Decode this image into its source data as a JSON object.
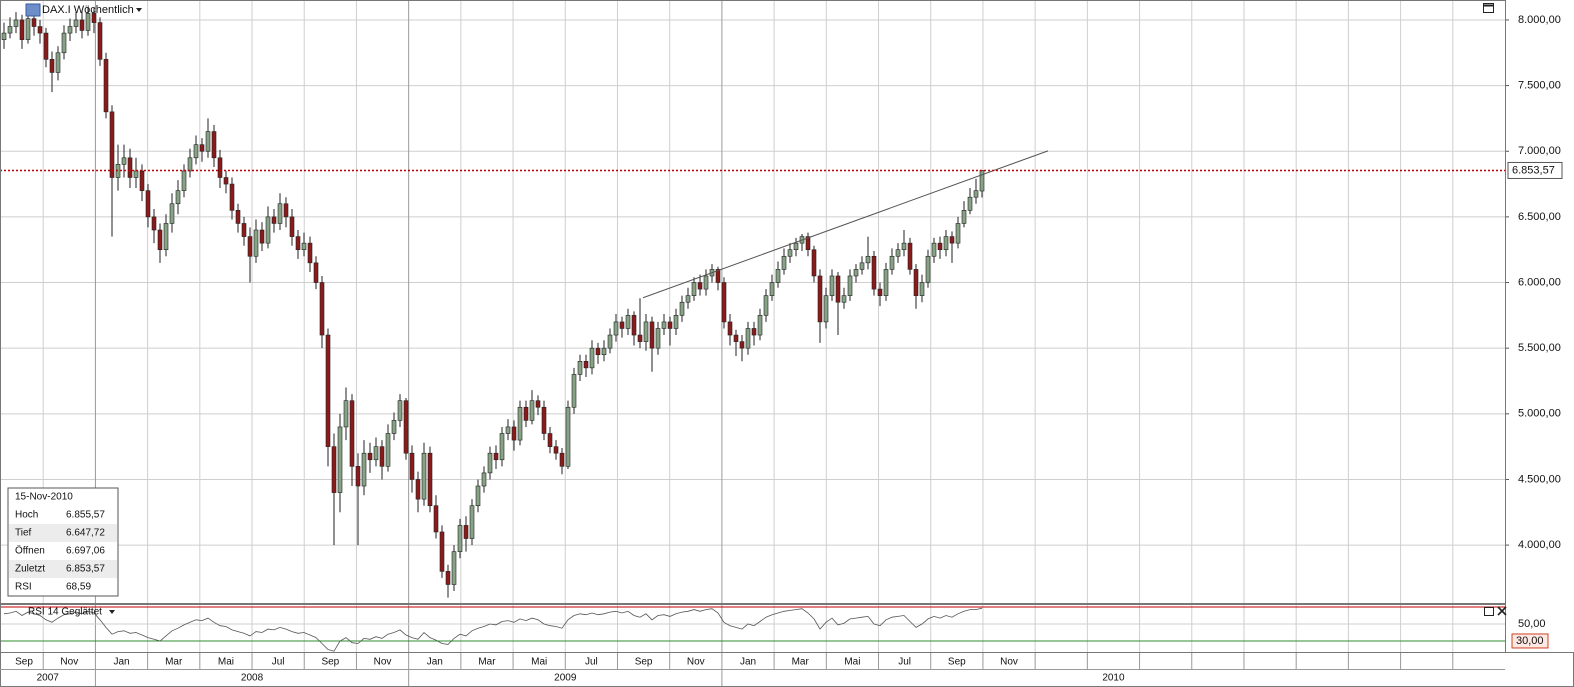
{
  "chart_data": {
    "type": "candlestick",
    "title": "DAX.I Wöchentlich",
    "categories": [
      "Sep",
      "Nov",
      "Jan",
      "Mar",
      "Mai",
      "Jul",
      "Sep",
      "Nov",
      "Jan",
      "Mar",
      "Mai",
      "Jul",
      "Sep",
      "Nov",
      "Jan",
      "Mar",
      "Mai",
      "Jul",
      "Sep",
      "Nov",
      null,
      null,
      null,
      null,
      null,
      null,
      null,
      null,
      null
    ],
    "years": [
      "2007",
      "2008",
      "2009",
      "2010"
    ],
    "ylim": [
      3559,
      8152
    ],
    "yticks": [
      {
        "value": 4000,
        "label": "4.000,00"
      },
      {
        "value": 4500,
        "label": "4.500,00"
      },
      {
        "value": 5000,
        "label": "5.000,00"
      },
      {
        "value": 5500,
        "label": "5.500,00"
      },
      {
        "value": 6000,
        "label": "6.000,00"
      },
      {
        "value": 6500,
        "label": "6.500,00"
      },
      {
        "value": 7000,
        "label": "7.000,00"
      },
      {
        "value": 7500,
        "label": "7.500,00"
      },
      {
        "value": 8000,
        "label": "8.000,00"
      }
    ],
    "grid": true,
    "up_color": "#86a386",
    "down_color": "#8b1a1a",
    "ohlc": [
      [
        7850,
        7980,
        7780,
        7900
      ],
      [
        7900,
        8020,
        7860,
        7950
      ],
      [
        7950,
        8060,
        7900,
        8000
      ],
      [
        8000,
        8040,
        7780,
        7850
      ],
      [
        7850,
        8080,
        7820,
        8010
      ],
      [
        8010,
        8050,
        7880,
        7950
      ],
      [
        7950,
        8000,
        7820,
        7900
      ],
      [
        7900,
        7940,
        7640,
        7700
      ],
      [
        7700,
        7760,
        7450,
        7600
      ],
      [
        7600,
        7800,
        7540,
        7750
      ],
      [
        7750,
        7960,
        7700,
        7900
      ],
      [
        7900,
        8010,
        7840,
        7950
      ],
      [
        7950,
        8060,
        7900,
        8000
      ],
      [
        8000,
        8070,
        7860,
        7920
      ],
      [
        7920,
        8100,
        7880,
        8050
      ],
      [
        8050,
        8090,
        7900,
        7980
      ],
      [
        7980,
        8020,
        7650,
        7700
      ],
      [
        7700,
        7750,
        7250,
        7300
      ],
      [
        7300,
        7350,
        6350,
        6800
      ],
      [
        6800,
        7050,
        6700,
        6900
      ],
      [
        6900,
        7050,
        6800,
        6950
      ],
      [
        6950,
        7020,
        6720,
        6800
      ],
      [
        6800,
        6950,
        6720,
        6850
      ],
      [
        6850,
        6900,
        6620,
        6700
      ],
      [
        6700,
        6750,
        6420,
        6500
      ],
      [
        6500,
        6560,
        6300,
        6400
      ],
      [
        6400,
        6450,
        6150,
        6250
      ],
      [
        6250,
        6520,
        6200,
        6450
      ],
      [
        6450,
        6680,
        6380,
        6600
      ],
      [
        6600,
        6780,
        6520,
        6700
      ],
      [
        6700,
        6900,
        6650,
        6850
      ],
      [
        6850,
        7020,
        6800,
        6950
      ],
      [
        6950,
        7120,
        6900,
        7050
      ],
      [
        7050,
        7100,
        6920,
        7000
      ],
      [
        7000,
        7250,
        6950,
        7150
      ],
      [
        7150,
        7200,
        6880,
        6950
      ],
      [
        6950,
        7010,
        6720,
        6800
      ],
      [
        6800,
        6850,
        6680,
        6750
      ],
      [
        6750,
        6800,
        6480,
        6550
      ],
      [
        6550,
        6600,
        6380,
        6450
      ],
      [
        6450,
        6500,
        6280,
        6350
      ],
      [
        6350,
        6420,
        6000,
        6200
      ],
      [
        6200,
        6480,
        6150,
        6400
      ],
      [
        6400,
        6460,
        6240,
        6300
      ],
      [
        6300,
        6580,
        6260,
        6500
      ],
      [
        6500,
        6560,
        6380,
        6450
      ],
      [
        6450,
        6680,
        6400,
        6600
      ],
      [
        6600,
        6650,
        6420,
        6500
      ],
      [
        6500,
        6560,
        6280,
        6350
      ],
      [
        6350,
        6400,
        6180,
        6250
      ],
      [
        6250,
        6380,
        6200,
        6300
      ],
      [
        6300,
        6350,
        6080,
        6150
      ],
      [
        6150,
        6200,
        5950,
        6000
      ],
      [
        6000,
        6050,
        5500,
        5600
      ],
      [
        5600,
        5650,
        4600,
        4750
      ],
      [
        4750,
        4850,
        4000,
        4400
      ],
      [
        4400,
        5000,
        4250,
        4900
      ],
      [
        4900,
        5200,
        4800,
        5100
      ],
      [
        5100,
        5150,
        4450,
        4600
      ],
      [
        4600,
        4700,
        4000,
        4450
      ],
      [
        4450,
        4800,
        4380,
        4700
      ],
      [
        4700,
        4780,
        4550,
        4650
      ],
      [
        4650,
        4820,
        4600,
        4750
      ],
      [
        4750,
        4800,
        4500,
        4600
      ],
      [
        4600,
        4920,
        4560,
        4850
      ],
      [
        4850,
        5010,
        4800,
        4950
      ],
      [
        4950,
        5150,
        4900,
        5100
      ],
      [
        5100,
        5120,
        4650,
        4700
      ],
      [
        4700,
        4760,
        4400,
        4500
      ],
      [
        4500,
        4560,
        4250,
        4350
      ],
      [
        4350,
        4780,
        4300,
        4700
      ],
      [
        4700,
        4750,
        4250,
        4300
      ],
      [
        4300,
        4380,
        4050,
        4100
      ],
      [
        4100,
        4150,
        3750,
        3800
      ],
      [
        3800,
        3850,
        3600,
        3700
      ],
      [
        3700,
        4000,
        3650,
        3950
      ],
      [
        3950,
        4200,
        3900,
        4150
      ],
      [
        4150,
        4220,
        3950,
        4050
      ],
      [
        4050,
        4350,
        4000,
        4300
      ],
      [
        4300,
        4500,
        4250,
        4450
      ],
      [
        4450,
        4600,
        4400,
        4550
      ],
      [
        4550,
        4750,
        4500,
        4700
      ],
      [
        4700,
        4760,
        4580,
        4650
      ],
      [
        4650,
        4900,
        4600,
        4850
      ],
      [
        4850,
        4960,
        4800,
        4900
      ],
      [
        4900,
        4950,
        4720,
        4800
      ],
      [
        4800,
        5100,
        4760,
        5050
      ],
      [
        5050,
        5100,
        4900,
        4950
      ],
      [
        4950,
        5180,
        4920,
        5100
      ],
      [
        5100,
        5140,
        4990,
        5050
      ],
      [
        5050,
        5100,
        4800,
        4850
      ],
      [
        4850,
        4900,
        4700,
        4750
      ],
      [
        4750,
        4800,
        4650,
        4700
      ],
      [
        4700,
        4740,
        4540,
        4600
      ],
      [
        4600,
        5100,
        4580,
        5050
      ],
      [
        5050,
        5350,
        5000,
        5300
      ],
      [
        5300,
        5450,
        5250,
        5400
      ],
      [
        5400,
        5450,
        5280,
        5350
      ],
      [
        5350,
        5560,
        5300,
        5500
      ],
      [
        5500,
        5540,
        5380,
        5450
      ],
      [
        5450,
        5560,
        5400,
        5500
      ],
      [
        5500,
        5650,
        5460,
        5600
      ],
      [
        5600,
        5760,
        5550,
        5700
      ],
      [
        5700,
        5740,
        5580,
        5650
      ],
      [
        5650,
        5800,
        5600,
        5750
      ],
      [
        5750,
        5780,
        5520,
        5600
      ],
      [
        5600,
        5880,
        5500,
        5550
      ],
      [
        5550,
        5760,
        5480,
        5700
      ],
      [
        5700,
        5740,
        5320,
        5500
      ],
      [
        5500,
        5700,
        5450,
        5650
      ],
      [
        5650,
        5760,
        5600,
        5700
      ],
      [
        5700,
        5740,
        5520,
        5650
      ],
      [
        5650,
        5800,
        5600,
        5750
      ],
      [
        5750,
        5900,
        5700,
        5850
      ],
      [
        5850,
        5960,
        5800,
        5900
      ],
      [
        5900,
        6040,
        5860,
        6000
      ],
      [
        6000,
        6060,
        5900,
        5950
      ],
      [
        5950,
        6100,
        5900,
        6050
      ],
      [
        6050,
        6140,
        6000,
        6100
      ],
      [
        6100,
        6120,
        5940,
        6000
      ],
      [
        6000,
        6040,
        5650,
        5700
      ],
      [
        5700,
        5760,
        5520,
        5600
      ],
      [
        5600,
        5640,
        5440,
        5550
      ],
      [
        5550,
        5600,
        5400,
        5500
      ],
      [
        5500,
        5700,
        5450,
        5650
      ],
      [
        5650,
        5700,
        5520,
        5600
      ],
      [
        5600,
        5800,
        5560,
        5750
      ],
      [
        5750,
        5950,
        5700,
        5900
      ],
      [
        5900,
        6060,
        5860,
        6000
      ],
      [
        6000,
        6160,
        5960,
        6100
      ],
      [
        6100,
        6260,
        6060,
        6200
      ],
      [
        6200,
        6300,
        6150,
        6250
      ],
      [
        6250,
        6340,
        6200,
        6300
      ],
      [
        6300,
        6370,
        6240,
        6350
      ],
      [
        6350,
        6380,
        6200,
        6250
      ],
      [
        6250,
        6280,
        6000,
        6050
      ],
      [
        6050,
        6100,
        5540,
        5700
      ],
      [
        5700,
        5960,
        5650,
        5900
      ],
      [
        5900,
        6100,
        5860,
        6050
      ],
      [
        6050,
        6080,
        5600,
        5850
      ],
      [
        5850,
        5960,
        5800,
        5900
      ],
      [
        5900,
        6100,
        5860,
        6050
      ],
      [
        6050,
        6140,
        6000,
        6100
      ],
      [
        6100,
        6200,
        6060,
        6150
      ],
      [
        6150,
        6350,
        6100,
        6200
      ],
      [
        6200,
        6240,
        5900,
        5950
      ],
      [
        5950,
        6000,
        5820,
        5900
      ],
      [
        5900,
        6150,
        5860,
        6100
      ],
      [
        6100,
        6260,
        6060,
        6200
      ],
      [
        6200,
        6300,
        6150,
        6250
      ],
      [
        6250,
        6400,
        6200,
        6300
      ],
      [
        6300,
        6340,
        6060,
        6100
      ],
      [
        6100,
        6140,
        5800,
        5900
      ],
      [
        5900,
        6060,
        5850,
        6000
      ],
      [
        6000,
        6250,
        5960,
        6200
      ],
      [
        6200,
        6340,
        6150,
        6300
      ],
      [
        6300,
        6350,
        6180,
        6250
      ],
      [
        6250,
        6400,
        6200,
        6350
      ],
      [
        6350,
        6390,
        6150,
        6300
      ],
      [
        6300,
        6500,
        6260,
        6450
      ],
      [
        6450,
        6620,
        6420,
        6550
      ],
      [
        6550,
        6720,
        6520,
        6650
      ],
      [
        6650,
        6790,
        6600,
        6700
      ],
      [
        6697.06,
        6855.57,
        6647.72,
        6853.57
      ]
    ],
    "last": {
      "value": 6853.57,
      "label": "6.853,57",
      "color": "#c00000"
    },
    "trendline": {
      "x": [
        106.5,
        174
      ],
      "y": [
        5884,
        7003
      ],
      "color": "#555555"
    },
    "info": {
      "date": "15-Nov-2010",
      "rows": [
        [
          "Hoch",
          "6.855,57"
        ],
        [
          "Tief",
          "6.647,72"
        ],
        [
          "Öffnen",
          "6.697,06"
        ],
        [
          "Zuletzt",
          "6.853,57"
        ],
        [
          "RSI",
          "68,59"
        ]
      ]
    },
    "rsi": {
      "title": "RSI 14 Geglättet",
      "color": "#555555",
      "ylim": [
        17,
        72.4
      ],
      "yticks": [
        {
          "value": 50,
          "label": "50,00"
        }
      ],
      "upper": 70,
      "upper_color": "#c00000",
      "lower": {
        "value": 30,
        "label": "30,00"
      },
      "lower_color": "#2e8b2e",
      "values": [
        62,
        63,
        65,
        60,
        64,
        62,
        60,
        55,
        52,
        57,
        61,
        62,
        64,
        62,
        65,
        63,
        55,
        46,
        38,
        41,
        42,
        39,
        40,
        37,
        34,
        32,
        30,
        36,
        42,
        45,
        49,
        52,
        55,
        54,
        57,
        52,
        48,
        47,
        43,
        41,
        39,
        36,
        41,
        40,
        44,
        43,
        46,
        44,
        41,
        39,
        40,
        37,
        34,
        27,
        20,
        18,
        30,
        34,
        28,
        27,
        33,
        32,
        35,
        33,
        38,
        40,
        43,
        37,
        34,
        32,
        40,
        34,
        31,
        27,
        26,
        33,
        38,
        36,
        42,
        45,
        47,
        50,
        49,
        53,
        54,
        52,
        56,
        54,
        57,
        55,
        50,
        48,
        47,
        45,
        55,
        60,
        62,
        61,
        63,
        61,
        62,
        64,
        65,
        63,
        65,
        60,
        58,
        62,
        55,
        60,
        61,
        59,
        62,
        64,
        65,
        67,
        65,
        67,
        68,
        63,
        52,
        48,
        46,
        44,
        50,
        48,
        53,
        58,
        61,
        63,
        65,
        66,
        67,
        68,
        63,
        56,
        44,
        52,
        57,
        49,
        51,
        56,
        57,
        58,
        59,
        50,
        48,
        55,
        58,
        59,
        60,
        53,
        46,
        50,
        56,
        59,
        57,
        60,
        58,
        62,
        65,
        67,
        67,
        68.59
      ]
    }
  }
}
